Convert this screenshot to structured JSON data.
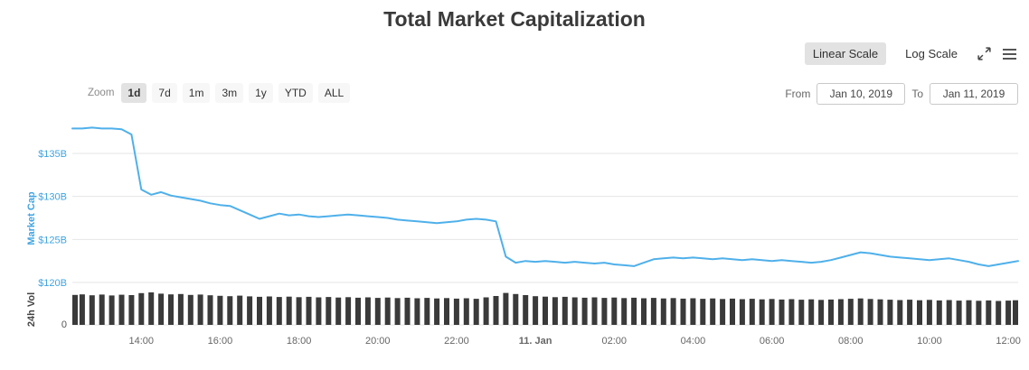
{
  "header": {
    "title": "Total Market Capitalization"
  },
  "scale_controls": {
    "linear_label": "Linear Scale",
    "log_label": "Log Scale",
    "icons": {
      "fullscreen": "diagonal-expand-arrows",
      "chart_menu": "hamburger-lines"
    }
  },
  "range_selector": {
    "zoom_label": "Zoom",
    "buttons": [
      "1d",
      "7d",
      "1m",
      "3m",
      "1y",
      "YTD",
      "ALL"
    ],
    "selected": "1d",
    "from_label": "From",
    "from_value": "Jan 10, 2019",
    "to_label": "To",
    "to_value": "Jan 11, 2019"
  },
  "chart_data": {
    "type": "line",
    "title": "Total Market Capitalization",
    "grid": true,
    "colors": {
      "line": "#4FB0EA",
      "bars": "#3a3a3a",
      "grid": "#e6e6e6",
      "y_axis_labels": "#3FA4E2",
      "x_axis_labels": "#666666",
      "volume_axis_labels": "#555555"
    },
    "y_axis": {
      "label": "Market Cap",
      "tick_labels": [
        "$135B",
        "$130B",
        "$125B",
        "$120B"
      ],
      "tick_values": [
        135,
        130,
        125,
        120
      ],
      "unit": "USD billions",
      "ylim": [
        119.5,
        139.0
      ]
    },
    "volume_axis": {
      "label": "24h Vol",
      "tick_labels": [
        "0"
      ],
      "unit": "USD billions"
    },
    "x_ticks": [
      {
        "label": "14:00",
        "index": 7
      },
      {
        "label": "16:00",
        "index": 15
      },
      {
        "label": "18:00",
        "index": 23
      },
      {
        "label": "20:00",
        "index": 31
      },
      {
        "label": "22:00",
        "index": 39
      },
      {
        "label": "11. Jan",
        "index": 47,
        "bold": true
      },
      {
        "label": "02:00",
        "index": 55
      },
      {
        "label": "04:00",
        "index": 63
      },
      {
        "label": "06:00",
        "index": 71
      },
      {
        "label": "08:00",
        "index": 79
      },
      {
        "label": "10:00",
        "index": 87
      },
      {
        "label": "12:00",
        "index": 95
      }
    ],
    "times": [
      "12:15",
      "12:30",
      "12:45",
      "13:00",
      "13:15",
      "13:30",
      "13:45",
      "14:00",
      "14:15",
      "14:30",
      "14:45",
      "15:00",
      "15:15",
      "15:30",
      "15:45",
      "16:00",
      "16:15",
      "16:30",
      "16:45",
      "17:00",
      "17:15",
      "17:30",
      "17:45",
      "18:00",
      "18:15",
      "18:30",
      "18:45",
      "19:00",
      "19:15",
      "19:30",
      "19:45",
      "20:00",
      "20:15",
      "20:30",
      "20:45",
      "21:00",
      "21:15",
      "21:30",
      "21:45",
      "22:00",
      "22:15",
      "22:30",
      "22:45",
      "23:00",
      "23:15",
      "23:30",
      "23:45",
      "00:00",
      "00:15",
      "00:30",
      "00:45",
      "01:00",
      "01:15",
      "01:30",
      "01:45",
      "02:00",
      "02:15",
      "02:30",
      "02:45",
      "03:00",
      "03:15",
      "03:30",
      "03:45",
      "04:00",
      "04:15",
      "04:30",
      "04:45",
      "05:00",
      "05:15",
      "05:30",
      "05:45",
      "06:00",
      "06:15",
      "06:30",
      "06:45",
      "07:00",
      "07:15",
      "07:30",
      "07:45",
      "08:00",
      "08:15",
      "08:30",
      "08:45",
      "09:00",
      "09:15",
      "09:30",
      "09:45",
      "10:00",
      "10:15",
      "10:30",
      "10:45",
      "11:00",
      "11:15",
      "11:30",
      "11:45",
      "12:00",
      "12:15"
    ],
    "market_cap_billions": [
      137.9,
      137.9,
      138.0,
      137.9,
      137.9,
      137.8,
      137.2,
      130.8,
      130.2,
      130.5,
      130.1,
      129.9,
      129.7,
      129.5,
      129.2,
      129.0,
      128.9,
      128.4,
      127.9,
      127.4,
      127.7,
      128.0,
      127.8,
      127.9,
      127.7,
      127.6,
      127.7,
      127.8,
      127.9,
      127.8,
      127.7,
      127.6,
      127.5,
      127.3,
      127.2,
      127.1,
      127.0,
      126.9,
      127.0,
      127.1,
      127.3,
      127.4,
      127.3,
      127.1,
      123.0,
      122.3,
      122.5,
      122.4,
      122.5,
      122.4,
      122.3,
      122.4,
      122.3,
      122.2,
      122.3,
      122.1,
      122.0,
      121.9,
      122.3,
      122.7,
      122.8,
      122.9,
      122.8,
      122.9,
      122.8,
      122.7,
      122.8,
      122.7,
      122.6,
      122.7,
      122.6,
      122.5,
      122.6,
      122.5,
      122.4,
      122.3,
      122.4,
      122.6,
      122.9,
      123.2,
      123.5,
      123.4,
      123.2,
      123.0,
      122.9,
      122.8,
      122.7,
      122.6,
      122.7,
      122.8,
      122.6,
      122.4,
      122.1,
      121.9,
      122.1,
      122.3,
      122.5
    ],
    "volume_billions": [
      16.8,
      17.1,
      16.6,
      17.0,
      16.5,
      16.9,
      16.7,
      17.8,
      18.2,
      17.5,
      17.1,
      17.3,
      16.8,
      17.0,
      16.6,
      16.3,
      16.1,
      16.4,
      16.0,
      15.7,
      15.9,
      15.6,
      15.8,
      15.5,
      15.7,
      15.4,
      15.6,
      15.3,
      15.5,
      15.2,
      15.4,
      15.1,
      15.3,
      15.0,
      15.2,
      14.9,
      15.1,
      14.8,
      15.0,
      14.7,
      14.9,
      14.6,
      15.4,
      16.2,
      17.9,
      17.3,
      16.7,
      16.1,
      15.8,
      15.5,
      15.7,
      15.4,
      15.2,
      15.4,
      15.1,
      15.3,
      15.0,
      15.2,
      14.9,
      15.1,
      14.8,
      15.0,
      14.7,
      14.9,
      14.6,
      14.8,
      14.5,
      14.7,
      14.4,
      14.6,
      14.3,
      14.5,
      14.2,
      14.4,
      14.1,
      14.3,
      14.0,
      14.2,
      14.4,
      14.6,
      14.8,
      14.5,
      14.3,
      14.1,
      13.9,
      14.1,
      13.8,
      14.0,
      13.7,
      13.9,
      13.6,
      13.8,
      13.5,
      13.7,
      13.4,
      13.6,
      13.8
    ]
  }
}
